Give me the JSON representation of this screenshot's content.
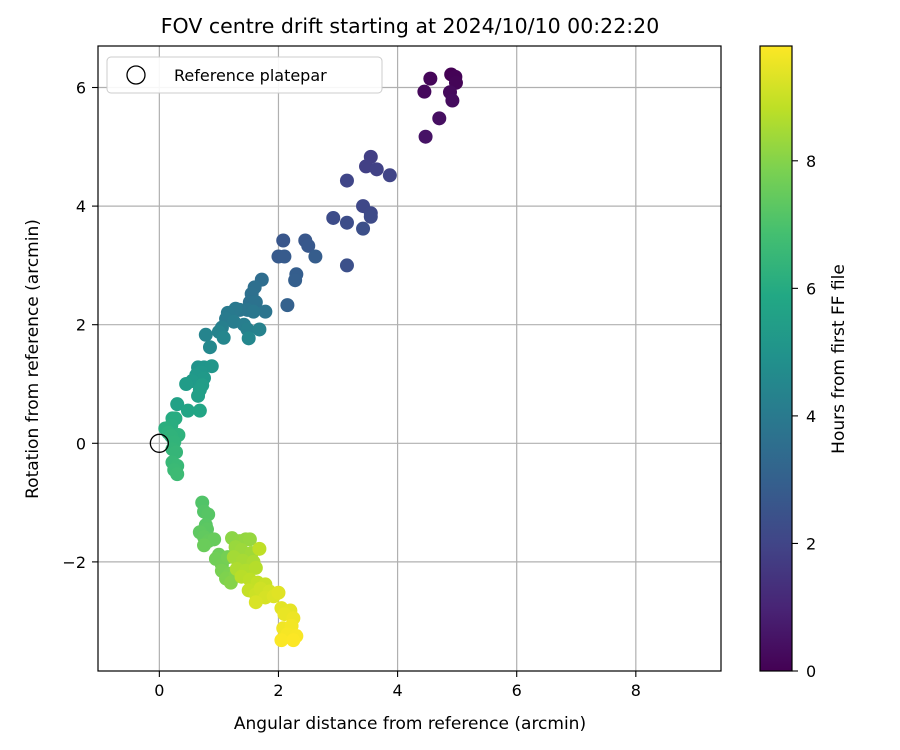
{
  "chart_data": {
    "type": "scatter",
    "title": "FOV centre drift starting at 2024/10/10 00:22:20",
    "xlabel": "Angular distance from reference (arcmin)",
    "ylabel": "Rotation from reference (arcmin)",
    "xlim": [
      -1.03,
      9.43
    ],
    "ylim": [
      -3.84,
      6.7
    ],
    "xticks": [
      0,
      2,
      4,
      6,
      8
    ],
    "yticks": [
      -2,
      0,
      2,
      4,
      6
    ],
    "ytick_labels": [
      "−2",
      "0",
      "2",
      "4",
      "6"
    ],
    "grid": true,
    "legend": {
      "position": "top-left",
      "entries": [
        {
          "label": "Reference platepar",
          "marker": "open-circle"
        }
      ]
    },
    "reference_point": {
      "x": 0,
      "y": 0
    },
    "colorbar": {
      "label": "Hours from first FF file",
      "min": 0,
      "max": 9.8,
      "ticks": [
        0,
        2,
        4,
        6,
        8
      ],
      "colormap": "viridis"
    },
    "points": [
      {
        "x": 4.9,
        "y": 6.22,
        "h": 0.0
      },
      {
        "x": 4.97,
        "y": 6.18,
        "h": 0.05
      },
      {
        "x": 4.98,
        "y": 6.08,
        "h": 0.1
      },
      {
        "x": 4.55,
        "y": 6.15,
        "h": 0.15
      },
      {
        "x": 4.45,
        "y": 5.93,
        "h": 0.2
      },
      {
        "x": 4.88,
        "y": 5.92,
        "h": 0.25
      },
      {
        "x": 4.92,
        "y": 5.78,
        "h": 0.3
      },
      {
        "x": 4.7,
        "y": 5.48,
        "h": 0.4
      },
      {
        "x": 4.47,
        "y": 5.17,
        "h": 0.5
      },
      {
        "x": 3.55,
        "y": 4.83,
        "h": 1.8
      },
      {
        "x": 3.47,
        "y": 4.67,
        "h": 1.85
      },
      {
        "x": 3.65,
        "y": 4.62,
        "h": 1.9
      },
      {
        "x": 3.87,
        "y": 4.52,
        "h": 2.0
      },
      {
        "x": 3.15,
        "y": 4.43,
        "h": 2.05
      },
      {
        "x": 3.42,
        "y": 4.0,
        "h": 2.1
      },
      {
        "x": 3.55,
        "y": 3.88,
        "h": 2.15
      },
      {
        "x": 3.55,
        "y": 3.82,
        "h": 2.2
      },
      {
        "x": 2.92,
        "y": 3.8,
        "h": 2.25
      },
      {
        "x": 3.15,
        "y": 3.72,
        "h": 2.3
      },
      {
        "x": 3.42,
        "y": 3.62,
        "h": 2.35
      },
      {
        "x": 3.15,
        "y": 3.0,
        "h": 2.4
      },
      {
        "x": 2.08,
        "y": 3.42,
        "h": 2.6
      },
      {
        "x": 2.45,
        "y": 3.42,
        "h": 2.65
      },
      {
        "x": 2.5,
        "y": 3.33,
        "h": 2.7
      },
      {
        "x": 2.0,
        "y": 3.15,
        "h": 2.75
      },
      {
        "x": 2.1,
        "y": 3.15,
        "h": 2.8
      },
      {
        "x": 2.62,
        "y": 3.15,
        "h": 2.85
      },
      {
        "x": 2.3,
        "y": 2.85,
        "h": 2.9
      },
      {
        "x": 2.28,
        "y": 2.75,
        "h": 2.95
      },
      {
        "x": 2.15,
        "y": 2.33,
        "h": 3.0
      },
      {
        "x": 1.72,
        "y": 2.76,
        "h": 3.5
      },
      {
        "x": 1.6,
        "y": 2.63,
        "h": 3.55
      },
      {
        "x": 1.55,
        "y": 2.52,
        "h": 3.6
      },
      {
        "x": 1.52,
        "y": 2.38,
        "h": 3.65
      },
      {
        "x": 1.62,
        "y": 2.38,
        "h": 3.7
      },
      {
        "x": 1.78,
        "y": 2.22,
        "h": 3.75
      },
      {
        "x": 1.48,
        "y": 2.25,
        "h": 3.8
      },
      {
        "x": 1.35,
        "y": 2.25,
        "h": 3.85
      },
      {
        "x": 1.58,
        "y": 2.22,
        "h": 3.9
      },
      {
        "x": 1.28,
        "y": 2.27,
        "h": 3.95
      },
      {
        "x": 1.15,
        "y": 2.2,
        "h": 4.0
      },
      {
        "x": 1.12,
        "y": 2.1,
        "h": 4.05
      },
      {
        "x": 1.25,
        "y": 2.05,
        "h": 4.1
      },
      {
        "x": 1.42,
        "y": 2.0,
        "h": 4.15
      },
      {
        "x": 1.05,
        "y": 1.95,
        "h": 4.2
      },
      {
        "x": 1.48,
        "y": 1.92,
        "h": 4.25
      },
      {
        "x": 1.68,
        "y": 1.92,
        "h": 4.3
      },
      {
        "x": 1.0,
        "y": 1.88,
        "h": 4.35
      },
      {
        "x": 0.78,
        "y": 1.83,
        "h": 4.4
      },
      {
        "x": 1.08,
        "y": 1.78,
        "h": 4.45
      },
      {
        "x": 1.5,
        "y": 1.77,
        "h": 4.5
      },
      {
        "x": 0.85,
        "y": 1.62,
        "h": 4.55
      },
      {
        "x": 0.65,
        "y": 1.28,
        "h": 5.0
      },
      {
        "x": 0.75,
        "y": 1.28,
        "h": 5.05
      },
      {
        "x": 0.88,
        "y": 1.3,
        "h": 5.1
      },
      {
        "x": 0.7,
        "y": 1.2,
        "h": 5.15
      },
      {
        "x": 0.62,
        "y": 1.15,
        "h": 5.2
      },
      {
        "x": 0.75,
        "y": 1.1,
        "h": 5.25
      },
      {
        "x": 0.55,
        "y": 1.05,
        "h": 5.3
      },
      {
        "x": 0.45,
        "y": 1.0,
        "h": 5.35
      },
      {
        "x": 0.72,
        "y": 0.98,
        "h": 5.4
      },
      {
        "x": 0.68,
        "y": 0.9,
        "h": 5.45
      },
      {
        "x": 0.65,
        "y": 0.8,
        "h": 5.5
      },
      {
        "x": 0.3,
        "y": 0.66,
        "h": 5.6
      },
      {
        "x": 0.48,
        "y": 0.55,
        "h": 5.7
      },
      {
        "x": 0.68,
        "y": 0.55,
        "h": 5.75
      },
      {
        "x": 0.22,
        "y": 0.42,
        "h": 6.0
      },
      {
        "x": 0.27,
        "y": 0.42,
        "h": 6.05
      },
      {
        "x": 0.2,
        "y": 0.3,
        "h": 6.1
      },
      {
        "x": 0.1,
        "y": 0.25,
        "h": 6.15
      },
      {
        "x": 0.15,
        "y": 0.18,
        "h": 6.2
      },
      {
        "x": 0.32,
        "y": 0.14,
        "h": 6.25
      },
      {
        "x": 0.2,
        "y": 0.12,
        "h": 6.3
      },
      {
        "x": 0.25,
        "y": 0.02,
        "h": 6.35
      },
      {
        "x": 0.22,
        "y": -0.1,
        "h": 6.4
      },
      {
        "x": 0.28,
        "y": -0.15,
        "h": 6.45
      },
      {
        "x": 0.22,
        "y": -0.32,
        "h": 6.5
      },
      {
        "x": 0.3,
        "y": -0.38,
        "h": 6.55
      },
      {
        "x": 0.25,
        "y": -0.45,
        "h": 6.6
      },
      {
        "x": 0.3,
        "y": -0.52,
        "h": 6.65
      },
      {
        "x": 0.72,
        "y": -1.0,
        "h": 7.1
      },
      {
        "x": 0.75,
        "y": -1.15,
        "h": 7.15
      },
      {
        "x": 0.82,
        "y": -1.2,
        "h": 7.2
      },
      {
        "x": 0.78,
        "y": -1.38,
        "h": 7.25
      },
      {
        "x": 0.8,
        "y": -1.45,
        "h": 7.3
      },
      {
        "x": 0.68,
        "y": -1.5,
        "h": 7.35
      },
      {
        "x": 0.75,
        "y": -1.58,
        "h": 7.4
      },
      {
        "x": 0.82,
        "y": -1.65,
        "h": 7.45
      },
      {
        "x": 0.92,
        "y": -1.62,
        "h": 7.5
      },
      {
        "x": 0.75,
        "y": -1.72,
        "h": 7.55
      },
      {
        "x": 1.0,
        "y": -1.88,
        "h": 7.6
      },
      {
        "x": 0.95,
        "y": -1.95,
        "h": 7.65
      },
      {
        "x": 1.05,
        "y": -2.05,
        "h": 7.7
      },
      {
        "x": 1.15,
        "y": -1.92,
        "h": 7.75
      },
      {
        "x": 1.05,
        "y": -2.15,
        "h": 7.8
      },
      {
        "x": 1.18,
        "y": -2.2,
        "h": 7.85
      },
      {
        "x": 1.12,
        "y": -2.28,
        "h": 7.9
      },
      {
        "x": 1.28,
        "y": -2.22,
        "h": 7.95
      },
      {
        "x": 1.2,
        "y": -2.35,
        "h": 8.0
      },
      {
        "x": 1.35,
        "y": -2.05,
        "h": 8.05
      },
      {
        "x": 1.22,
        "y": -1.6,
        "h": 8.1
      },
      {
        "x": 1.35,
        "y": -1.65,
        "h": 8.15
      },
      {
        "x": 1.45,
        "y": -1.62,
        "h": 8.2
      },
      {
        "x": 1.52,
        "y": -1.62,
        "h": 8.25
      },
      {
        "x": 1.28,
        "y": -1.75,
        "h": 8.3
      },
      {
        "x": 1.38,
        "y": -1.8,
        "h": 8.35
      },
      {
        "x": 1.55,
        "y": -1.85,
        "h": 8.4
      },
      {
        "x": 1.25,
        "y": -1.92,
        "h": 8.45
      },
      {
        "x": 1.4,
        "y": -1.98,
        "h": 8.5
      },
      {
        "x": 1.58,
        "y": -2.0,
        "h": 8.55
      },
      {
        "x": 1.3,
        "y": -2.12,
        "h": 8.6
      },
      {
        "x": 1.45,
        "y": -2.15,
        "h": 8.65
      },
      {
        "x": 1.62,
        "y": -2.1,
        "h": 8.7
      },
      {
        "x": 1.38,
        "y": -2.25,
        "h": 8.75
      },
      {
        "x": 1.52,
        "y": -2.3,
        "h": 8.8
      },
      {
        "x": 1.68,
        "y": -1.78,
        "h": 8.85
      },
      {
        "x": 1.65,
        "y": -2.35,
        "h": 8.9
      },
      {
        "x": 1.5,
        "y": -2.48,
        "h": 8.95
      },
      {
        "x": 1.78,
        "y": -2.38,
        "h": 9.0
      },
      {
        "x": 1.62,
        "y": -2.55,
        "h": 9.05
      },
      {
        "x": 1.7,
        "y": -2.45,
        "h": 9.1
      },
      {
        "x": 1.85,
        "y": -2.5,
        "h": 9.15
      },
      {
        "x": 1.78,
        "y": -2.6,
        "h": 9.2
      },
      {
        "x": 1.62,
        "y": -2.68,
        "h": 9.25
      },
      {
        "x": 1.92,
        "y": -2.58,
        "h": 9.3
      },
      {
        "x": 2.0,
        "y": -2.52,
        "h": 9.35
      },
      {
        "x": 2.05,
        "y": -2.78,
        "h": 9.4
      },
      {
        "x": 2.2,
        "y": -2.82,
        "h": 9.45
      },
      {
        "x": 2.1,
        "y": -2.88,
        "h": 9.5
      },
      {
        "x": 2.25,
        "y": -2.95,
        "h": 9.55
      },
      {
        "x": 2.08,
        "y": -3.12,
        "h": 9.6
      },
      {
        "x": 2.22,
        "y": -3.08,
        "h": 9.65
      },
      {
        "x": 2.15,
        "y": -3.22,
        "h": 9.7
      },
      {
        "x": 2.3,
        "y": -3.25,
        "h": 9.72
      },
      {
        "x": 2.05,
        "y": -3.32,
        "h": 9.75
      },
      {
        "x": 2.25,
        "y": -3.32,
        "h": 9.78
      }
    ]
  }
}
